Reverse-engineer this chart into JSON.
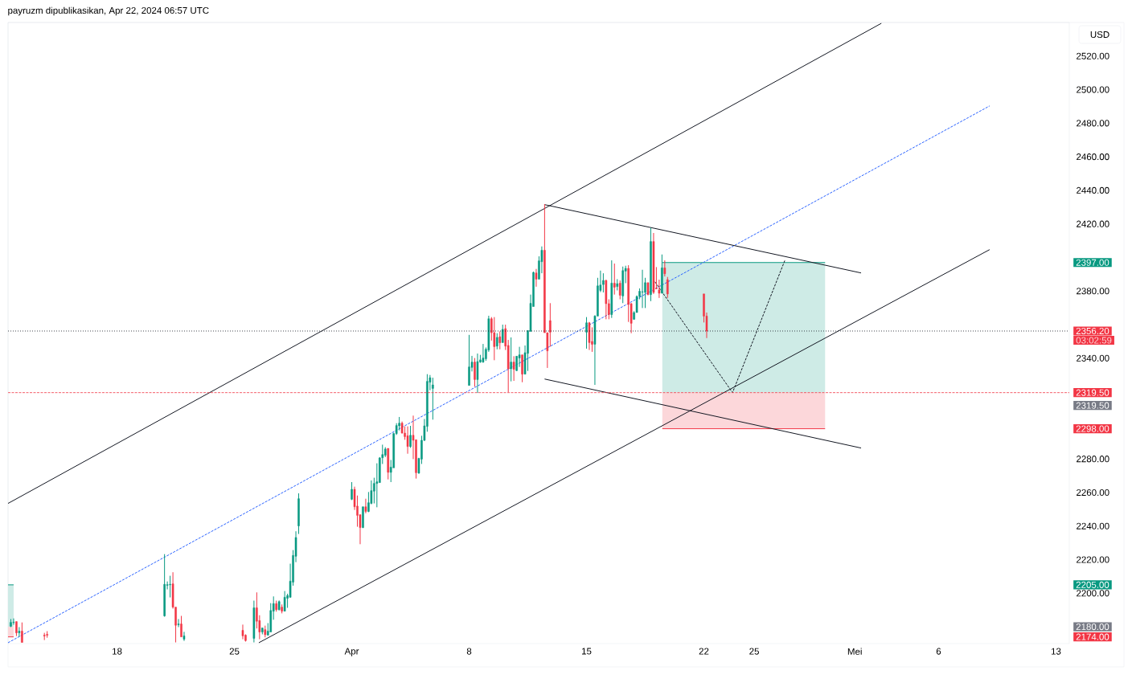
{
  "chart_data": {
    "type": "candlestick",
    "title": "payruzm dipublikasikan, Apr 22, 2024 06:57 UTC",
    "ylabel": "USD",
    "colors": [
      "#089981",
      "#089981",
      "#f23645",
      "#089981",
      "#f23645",
      "#f23645",
      "#f23645",
      "#089981",
      "#089981",
      "#089981",
      "#f23645",
      "#f23645",
      "#089981",
      "#f23645",
      "#089981",
      "#f23645",
      "#f23645",
      "#089981",
      "#f23645",
      "#f23645",
      "#089981",
      "#f23645",
      "#089981",
      "#089981",
      "#089981",
      "#f23645",
      "#089981",
      "#f23645",
      "#089981",
      "#089981",
      "#089981",
      "#089981",
      "#089981",
      "#089981",
      "#089981",
      "#f23645",
      "#f23645",
      "#f23645",
      "#089981",
      "#f23645",
      "#089981",
      "#089981",
      "#089981",
      "#089981",
      "#089981",
      "#089981",
      "#089981",
      "#f23645",
      "#089981",
      "#089981",
      "#089981",
      "#089981",
      "#f23645",
      "#f23645",
      "#f23645",
      "#089981",
      "#f23645",
      "#f23645",
      "#089981",
      "#089981",
      "#089981",
      "#089981",
      "#089981",
      "#089981",
      "#089981",
      "#089981",
      "#f23645",
      "#089981",
      "#089981",
      "#089981",
      "#089981",
      "#089981",
      "#f23645",
      "#f23645",
      "#089981",
      "#f23645",
      "#089981",
      "#f23645",
      "#f23645",
      "#089981",
      "#f23645",
      "#089981",
      "#089981",
      "#f23645",
      "#089981",
      "#089981",
      "#089981",
      "#089981",
      "#f23645",
      "#089981",
      "#089981",
      "#f23645",
      "#f23645",
      "#f23645",
      "#089981",
      "#f23645",
      "#f23645",
      "#089981",
      "#089981",
      "#089981",
      "#089981",
      "#f23645",
      "#f23645",
      "#089981",
      "#f23645",
      "#089981",
      "#f23645",
      "#089981",
      "#089981",
      "#f23645",
      "#f23645",
      "#089981",
      "#089981",
      "#089981",
      "#089981",
      "#089981",
      "#f23645",
      "#089981",
      "#f23645",
      "#f23645",
      "#f23645",
      "#089981",
      "#f23645",
      "#f23645",
      "#f23645",
      "#f23645"
    ],
    "x": [
      "2024-03-11T16:00",
      "2024-03-11T20:00",
      "2024-03-12T00:00",
      "2024-03-12T04:00",
      "2024-03-12T08:00",
      "2024-03-13T16:00",
      "2024-03-13T20:00",
      "2024-03-20T20:00",
      "2024-03-21T00:00",
      "2024-03-21T04:00",
      "2024-03-21T08:00",
      "2024-03-21T12:00",
      "2024-03-21T16:00",
      "2024-03-21T20:00",
      "2024-03-22T00:00",
      "2024-03-25T12:00",
      "2024-03-25T16:00",
      "2024-03-26T04:00",
      "2024-03-26T08:00",
      "2024-03-26T12:00",
      "2024-03-26T16:00",
      "2024-03-26T20:00",
      "2024-03-27T00:00",
      "2024-03-27T04:00",
      "2024-03-27T08:00",
      "2024-03-27T12:00",
      "2024-03-27T16:00",
      "2024-03-27T20:00",
      "2024-03-28T00:00",
      "2024-03-28T04:00",
      "2024-03-28T08:00",
      "2024-03-28T12:00",
      "2024-03-28T16:00",
      "2024-03-28T20:00",
      "2024-04-01T00:00",
      "2024-04-01T04:00",
      "2024-04-01T08:00",
      "2024-04-01T12:00",
      "2024-04-01T16:00",
      "2024-04-01T20:00",
      "2024-04-02T00:00",
      "2024-04-02T04:00",
      "2024-04-02T08:00",
      "2024-04-02T12:00",
      "2024-04-02T16:00",
      "2024-04-02T20:00",
      "2024-04-03T00:00",
      "2024-04-03T04:00",
      "2024-04-03T08:00",
      "2024-04-03T12:00",
      "2024-04-03T16:00",
      "2024-04-03T20:00",
      "2024-04-04T00:00",
      "2024-04-04T04:00",
      "2024-04-04T08:00",
      "2024-04-04T12:00",
      "2024-04-04T16:00",
      "2024-04-04T20:00",
      "2024-04-05T00:00",
      "2024-04-05T04:00",
      "2024-04-05T08:00",
      "2024-04-05T12:00",
      "2024-04-05T16:00",
      "2024-04-05T20:00",
      "2024-04-08T00:00",
      "2024-04-08T04:00",
      "2024-04-08T08:00",
      "2024-04-08T12:00",
      "2024-04-08T16:00",
      "2024-04-08T20:00",
      "2024-04-09T00:00",
      "2024-04-09T04:00",
      "2024-04-09T08:00",
      "2024-04-09T12:00",
      "2024-04-09T16:00",
      "2024-04-09T20:00",
      "2024-04-10T00:00",
      "2024-04-10T04:00",
      "2024-04-10T08:00",
      "2024-04-10T12:00",
      "2024-04-10T16:00",
      "2024-04-10T20:00",
      "2024-04-11T00:00",
      "2024-04-11T04:00",
      "2024-04-11T08:00",
      "2024-04-11T12:00",
      "2024-04-11T16:00",
      "2024-04-11T20:00",
      "2024-04-12T00:00",
      "2024-04-12T04:00",
      "2024-04-12T08:00",
      "2024-04-12T12:00",
      "2024-04-12T16:00",
      "2024-04-12T20:00",
      "2024-04-15T00:00",
      "2024-04-15T04:00",
      "2024-04-15T08:00",
      "2024-04-15T12:00",
      "2024-04-15T16:00",
      "2024-04-15T20:00",
      "2024-04-16T00:00",
      "2024-04-16T04:00",
      "2024-04-16T08:00",
      "2024-04-16T12:00",
      "2024-04-16T16:00",
      "2024-04-16T20:00",
      "2024-04-17T00:00",
      "2024-04-17T04:00",
      "2024-04-17T08:00",
      "2024-04-17T12:00",
      "2024-04-17T16:00",
      "2024-04-17T20:00",
      "2024-04-18T00:00",
      "2024-04-18T04:00",
      "2024-04-18T08:00",
      "2024-04-18T12:00",
      "2024-04-18T16:00",
      "2024-04-18T20:00",
      "2024-04-19T00:00",
      "2024-04-19T04:00",
      "2024-04-19T08:00",
      "2024-04-19T12:00",
      "2024-04-19T16:00",
      "2024-04-19T20:00",
      "2024-04-22T00:00",
      "2024-04-22T04:00"
    ],
    "ohlc": [
      [
        2180.3,
        2184.6,
        2179.8,
        2182.6
      ],
      [
        2182.5,
        2185.0,
        2181.2,
        2182.8
      ],
      [
        2183.1,
        2183.1,
        2174.5,
        2176.4
      ],
      [
        2176.4,
        2179.8,
        2174.0,
        2177.4
      ],
      [
        2177.4,
        2182.6,
        2170.7,
        2170.7
      ],
      [
        2175.0,
        2176.4,
        2172.1,
        2174.5
      ],
      [
        2175.5,
        2177.4,
        2173.5,
        2175.0
      ],
      [
        2186.5,
        2223.3,
        2186.0,
        2205.3
      ],
      [
        2204.7,
        2207.0,
        2202.3,
        2205.1
      ],
      [
        2205.0,
        2210.4,
        2197.5,
        2205.3
      ],
      [
        2205.6,
        2212.5,
        2190.8,
        2191.7
      ],
      [
        2191.7,
        2191.7,
        2170.7,
        2180.9
      ],
      [
        2181.2,
        2184.6,
        2179.8,
        2181.7
      ],
      [
        2181.7,
        2186.5,
        2174.0,
        2174.0
      ],
      [
        2172.6,
        2177.0,
        2171.6,
        2174.6
      ],
      [
        2177.9,
        2181.3,
        2172.6,
        2174.6
      ],
      [
        2175.0,
        2175.5,
        2171.2,
        2171.8
      ],
      [
        2173.1,
        2195.6,
        2170.7,
        2191.3
      ],
      [
        2191.3,
        2200.5,
        2179.0,
        2183.3
      ],
      [
        2183.7,
        2186.9,
        2172.6,
        2176.9
      ],
      [
        2176.9,
        2179.3,
        2175.5,
        2179.3
      ],
      [
        2178.3,
        2180.7,
        2173.7,
        2175.3
      ],
      [
        2175.0,
        2182.2,
        2175.0,
        2177.4
      ],
      [
        2176.9,
        2194.1,
        2176.9,
        2189.7
      ],
      [
        2189.3,
        2198.1,
        2184.2,
        2193.8
      ],
      [
        2193.8,
        2195.6,
        2189.0,
        2190.2
      ],
      [
        2190.2,
        2195.7,
        2189.7,
        2195.0
      ],
      [
        2191.7,
        2193.3,
        2188.0,
        2189.3
      ],
      [
        2189.3,
        2201.3,
        2189.3,
        2197.6
      ],
      [
        2197.0,
        2199.7,
        2191.3,
        2198.6
      ],
      [
        2197.6,
        2217.6,
        2197.3,
        2207.2
      ],
      [
        2206.6,
        2225.7,
        2204.5,
        2222.5
      ],
      [
        2222.0,
        2236.9,
        2218.5,
        2233.2
      ],
      [
        2240.1,
        2259.5,
        2235.3,
        2256.3
      ],
      [
        2256.0,
        2266.2,
        2255.5,
        2261.9
      ],
      [
        2261.9,
        2263.5,
        2249.6,
        2251.5
      ],
      [
        2251.9,
        2258.2,
        2239.6,
        2246.4
      ],
      [
        2246.8,
        2246.8,
        2229.2,
        2239.1
      ],
      [
        2239.1,
        2251.5,
        2238.8,
        2251.5
      ],
      [
        2251.5,
        2256.3,
        2247.6,
        2248.7
      ],
      [
        2248.7,
        2260.3,
        2248.3,
        2253.9
      ],
      [
        2253.5,
        2267.2,
        2253.0,
        2261.1
      ],
      [
        2260.8,
        2268.8,
        2253.5,
        2265.4
      ],
      [
        2265.4,
        2277.4,
        2251.2,
        2266.4
      ],
      [
        2265.9,
        2281.1,
        2265.9,
        2280.6
      ],
      [
        2280.7,
        2288.5,
        2277.0,
        2282.6
      ],
      [
        2282.2,
        2287.0,
        2281.1,
        2285.9
      ],
      [
        2286.3,
        2286.3,
        2267.8,
        2272.0
      ],
      [
        2272.0,
        2279.4,
        2266.2,
        2275.1
      ],
      [
        2274.7,
        2295.6,
        2274.7,
        2295.1
      ],
      [
        2295.1,
        2301.3,
        2294.3,
        2299.9
      ],
      [
        2299.7,
        2305.0,
        2297.0,
        2301.3
      ],
      [
        2301.3,
        2302.3,
        2295.1,
        2295.4
      ],
      [
        2295.4,
        2299.4,
        2291.4,
        2293.3
      ],
      [
        2293.8,
        2299.4,
        2283.1,
        2287.4
      ],
      [
        2287.4,
        2299.7,
        2286.6,
        2294.1
      ],
      [
        2294.1,
        2305.8,
        2279.9,
        2291.1
      ],
      [
        2291.4,
        2291.4,
        2268.3,
        2271.8
      ],
      [
        2271.5,
        2280.7,
        2271.2,
        2280.3
      ],
      [
        2279.9,
        2293.8,
        2277.0,
        2291.1
      ],
      [
        2291.1,
        2303.8,
        2290.6,
        2299.7
      ],
      [
        2299.4,
        2330.5,
        2296.2,
        2326.2
      ],
      [
        2325.7,
        2330.0,
        2320.9,
        2328.4
      ],
      [
        2322.0,
        2328.4,
        2303.4,
        2324.1
      ],
      [
        2323.8,
        2353.9,
        2323.8,
        2334.8
      ],
      [
        2334.5,
        2341.4,
        2332.1,
        2337.7
      ],
      [
        2337.7,
        2340.1,
        2323.0,
        2327.3
      ],
      [
        2327.3,
        2342.8,
        2319.3,
        2338.0
      ],
      [
        2337.7,
        2342.0,
        2337.3,
        2339.0
      ],
      [
        2337.7,
        2348.5,
        2337.3,
        2340.1
      ],
      [
        2339.7,
        2346.4,
        2338.5,
        2345.3
      ],
      [
        2344.9,
        2365.3,
        2343.8,
        2363.5
      ],
      [
        2363.5,
        2364.5,
        2350.5,
        2355.2
      ],
      [
        2355.2,
        2364.5,
        2338.8,
        2346.9
      ],
      [
        2347.2,
        2354.9,
        2345.3,
        2352.4
      ],
      [
        2352.8,
        2356.0,
        2345.3,
        2349.2
      ],
      [
        2349.3,
        2360.0,
        2349.3,
        2357.2
      ],
      [
        2357.6,
        2360.0,
        2344.9,
        2347.2
      ],
      [
        2347.6,
        2350.9,
        2319.8,
        2333.7
      ],
      [
        2333.7,
        2352.4,
        2326.2,
        2337.7
      ],
      [
        2337.7,
        2341.2,
        2326.5,
        2333.4
      ],
      [
        2332.6,
        2341.2,
        2332.4,
        2341.2
      ],
      [
        2340.1,
        2346.8,
        2334.8,
        2342.0
      ],
      [
        2342.0,
        2342.0,
        2325.7,
        2330.5
      ],
      [
        2330.5,
        2347.6,
        2330.5,
        2343.3
      ],
      [
        2342.9,
        2356.5,
        2332.4,
        2356.5
      ],
      [
        2356.0,
        2377.9,
        2356.0,
        2372.7
      ],
      [
        2370.8,
        2391.6,
        2370.8,
        2391.1
      ],
      [
        2390.8,
        2393.2,
        2382.6,
        2387.1
      ],
      [
        2387.1,
        2400.7,
        2387.1,
        2398.0
      ],
      [
        2397.5,
        2406.6,
        2390.6,
        2404.3
      ],
      [
        2404.3,
        2431.8,
        2355.2,
        2355.2
      ],
      [
        2355.2,
        2355.2,
        2334.2,
        2344.4
      ],
      [
        2362.4,
        2372.8,
        2346.9,
        2355.5
      ],
      [
        2355.5,
        2364.5,
        2345.7,
        2361.1
      ],
      [
        2361.1,
        2361.6,
        2344.9,
        2349.3
      ],
      [
        2350.0,
        2358.4,
        2343.8,
        2348.3
      ],
      [
        2348.3,
        2365.6,
        2324.1,
        2365.1
      ],
      [
        2365.1,
        2387.9,
        2365.1,
        2383.1
      ],
      [
        2380.4,
        2392.2,
        2379.4,
        2383.6
      ],
      [
        2383.9,
        2390.6,
        2379.2,
        2386.3
      ],
      [
        2386.3,
        2386.8,
        2363.2,
        2372.5
      ],
      [
        2372.5,
        2375.1,
        2363.2,
        2366.0
      ],
      [
        2366.0,
        2398.3,
        2364.0,
        2384.7
      ],
      [
        2384.7,
        2396.4,
        2377.9,
        2382.3
      ],
      [
        2382.7,
        2387.1,
        2380.4,
        2384.4
      ],
      [
        2384.7,
        2386.3,
        2375.1,
        2377.5
      ],
      [
        2377.1,
        2394.6,
        2372.8,
        2392.2
      ],
      [
        2391.9,
        2395.1,
        2384.7,
        2393.5
      ],
      [
        2393.5,
        2395.4,
        2361.6,
        2372.0
      ],
      [
        2372.5,
        2372.8,
        2354.9,
        2360.8
      ],
      [
        2363.2,
        2368.0,
        2362.9,
        2367.2
      ],
      [
        2367.2,
        2377.4,
        2367.2,
        2376.8
      ],
      [
        2376.8,
        2381.6,
        2375.1,
        2379.9
      ],
      [
        2379.4,
        2392.7,
        2369.9,
        2379.6
      ],
      [
        2379.2,
        2387.9,
        2369.9,
        2385.0
      ],
      [
        2385.0,
        2385.0,
        2377.5,
        2377.9
      ],
      [
        2377.9,
        2417.7,
        2374.0,
        2409.5
      ],
      [
        2409.5,
        2414.6,
        2378.3,
        2379.2
      ],
      [
        2381.7,
        2394.3,
        2381.2,
        2381.4
      ],
      [
        2380.7,
        2386.8,
        2375.9,
        2378.7
      ],
      [
        2378.7,
        2401.8,
        2378.7,
        2393.8
      ],
      [
        2393.8,
        2398.3,
        2388.7,
        2390.3
      ],
      [
        2386.8,
        2388.4,
        2375.9,
        2378.3
      ],
      [
        2378.3,
        2378.3,
        2361.3,
        2365.1
      ],
      [
        2365.1,
        2367.2,
        2352.0,
        2356.2
      ]
    ],
    "series": [
      {
        "type": "line",
        "color": "#089981",
        "line_style": "solid",
        "x": [
          "2024-03-11T12:00",
          "2024-03-11T20:00"
        ],
        "values": [
          2205,
          2205
        ],
        "upper": [
          2205,
          2205
        ],
        "lower": [
          2180,
          2180
        ]
      },
      {
        "type": "line",
        "color": "#f23645",
        "line_style": "solid",
        "x": [
          "2024-03-11T12:00",
          "2024-03-11T20:00"
        ],
        "values": [
          2174,
          2174
        ],
        "upper": [
          2180,
          2180
        ],
        "lower": [
          2174,
          2174
        ]
      },
      {
        "type": "line",
        "color": "#089981",
        "line_style": "solid",
        "x": [
          "2024-04-19T12:30",
          "2024-04-29T05:30"
        ],
        "values": [
          2397,
          2397
        ],
        "upper": [
          2397,
          2397
        ],
        "lower": [
          2319.5,
          2319.5
        ]
      },
      {
        "type": "line",
        "color": "#f23645",
        "line_style": "solid",
        "x": [
          "2024-04-19T12:30",
          "2024-04-29T05:30"
        ],
        "values": [
          2298,
          2298
        ],
        "upper": [
          2319.5,
          2319.5
        ],
        "lower": [
          2298,
          2298
        ]
      },
      {
        "type": "line",
        "color": "#131722",
        "line_style": "solid",
        "x": [
          "2024-03-11T12:00",
          "2024-05-02T14:00"
        ],
        "values": [
          2253.5,
          2539.5
        ]
      },
      {
        "type": "line",
        "color": "#131722",
        "line_style": "solid",
        "x": [
          "2024-03-26T11:00",
          "2024-05-09T01:00"
        ],
        "values": [
          2170.5,
          2404.7
        ]
      },
      {
        "type": "line",
        "color": "#2962ff",
        "line_style": "dashed",
        "x": [
          "2024-03-11T12:00",
          "2024-05-09T01:00"
        ],
        "values": [
          2170.5,
          2490.3
        ]
      },
      {
        "type": "line",
        "color": "#131722",
        "line_style": "solid",
        "x": [
          "2024-04-12T12:00",
          "2024-05-01T09:00"
        ],
        "values": [
          2431.5,
          2390.8
        ]
      },
      {
        "type": "line",
        "color": "#131722",
        "line_style": "solid",
        "x": [
          "2024-04-12T12:00",
          "2024-05-01T09:00"
        ],
        "values": [
          2327.6,
          2286.5
        ]
      },
      {
        "type": "line",
        "color": "#131722",
        "line_style": "dashed",
        "x": [
          "2024-04-19T02:00",
          "2024-04-23T17:00",
          "2024-04-26T20:00"
        ],
        "values": [
          2385.5,
          2319.5,
          2398.4
        ]
      }
    ],
    "ref_lines": [
      {
        "axis": "y",
        "value": 2356.2,
        "label": "2356.20",
        "color": "#131722",
        "line_style": "dotted"
      },
      {
        "axis": "y",
        "value": 2319.5,
        "label": "2319.50",
        "color": "#f23645",
        "line_style": "dashed"
      }
    ],
    "annotations": [
      "03:02:59",
      "2397.00",
      "2319.50",
      "2298.00",
      "2205.00",
      "2180.00",
      "2174.00"
    ],
    "xlim": [
      "2024-03-11T12:00",
      "2024-05-13T19:00"
    ],
    "ylim": [
      2170,
      2540
    ],
    "xticks": [
      {
        "value": "2024-03-18",
        "label": "18"
      },
      {
        "value": "2024-03-25",
        "label": "25"
      },
      {
        "value": "2024-04-01",
        "label": "Apr"
      },
      {
        "value": "2024-04-08",
        "label": "8"
      },
      {
        "value": "2024-04-15",
        "label": "15"
      },
      {
        "value": "2024-04-22",
        "label": "22"
      },
      {
        "value": "2024-04-25",
        "label": "25"
      },
      {
        "value": "2024-05-01",
        "label": "Mei"
      },
      {
        "value": "2024-05-06",
        "label": "6"
      },
      {
        "value": "2024-05-13",
        "label": "13"
      }
    ],
    "yticks": [
      {
        "value": 2200,
        "label": "2200.00"
      },
      {
        "value": 2220,
        "label": "2220.00"
      },
      {
        "value": 2240,
        "label": "2240.00"
      },
      {
        "value": 2260,
        "label": "2260.00"
      },
      {
        "value": 2280,
        "label": "2280.00"
      },
      {
        "value": 2340,
        "label": "2340.00"
      },
      {
        "value": 2380,
        "label": "2380.00"
      },
      {
        "value": 2420,
        "label": "2420.00"
      },
      {
        "value": 2440,
        "label": "2440.00"
      },
      {
        "value": 2460,
        "label": "2460.00"
      },
      {
        "value": 2480,
        "label": "2480.00"
      },
      {
        "value": 2500,
        "label": "2500.00"
      },
      {
        "value": 2520,
        "label": "2520.00"
      }
    ],
    "grid": false
  }
}
